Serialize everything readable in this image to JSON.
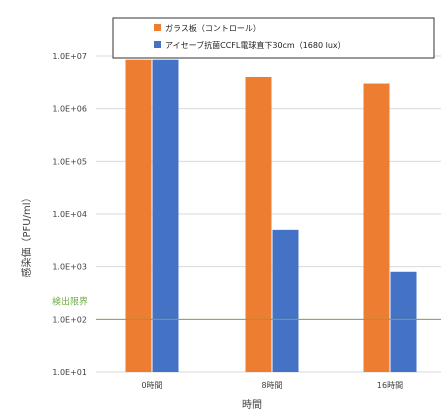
{
  "chart_data": {
    "type": "bar",
    "log_scale_y": true,
    "ylim": [
      10,
      10000000
    ],
    "ylabel": "感染価（PFU/ml）",
    "xlabel": "時間",
    "grid": true,
    "legend_position": "top-right",
    "categories": [
      "0時間",
      "8時間",
      "16時間"
    ],
    "y_tick_labels": [
      "1.0E+01",
      "1.0E+02",
      "1.0E+03",
      "1.0E+04",
      "1.0E+05",
      "1.0E+06",
      "1.0E+07"
    ],
    "y_tick_values": [
      10,
      100,
      1000,
      10000,
      100000,
      1000000,
      10000000
    ],
    "series": [
      {
        "name": "ガラス板（コントロール）",
        "color": "#ED7D31",
        "values": [
          8500000,
          4000000,
          3000000
        ]
      },
      {
        "name": "アイセーブ抗菌CCFL電球直下30cm（1680 lux）",
        "color": "#4472C4",
        "values": [
          8500000,
          5000,
          800
        ]
      }
    ],
    "annotations": [
      {
        "label": "検出限界",
        "y": 100,
        "color": "#70AD47"
      }
    ]
  }
}
